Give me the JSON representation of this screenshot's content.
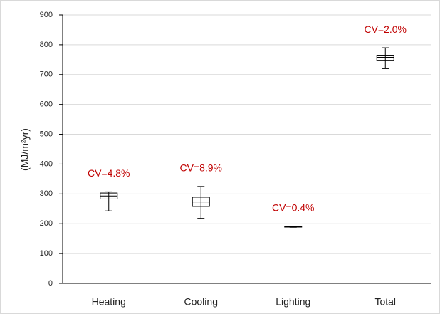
{
  "chart_data": {
    "type": "box",
    "y_label": "(MJ/m²yr)",
    "categories": [
      "Heating",
      "Cooling",
      "Lighting",
      "Total"
    ],
    "min": [
      243,
      218,
      188,
      720
    ],
    "q1": [
      283,
      258,
      189,
      748
    ],
    "median": [
      293,
      273,
      190,
      758
    ],
    "q3": [
      303,
      289,
      191,
      765
    ],
    "max": [
      307,
      325,
      192,
      790
    ],
    "annotations": [
      "CV=4.8%",
      "CV=8.9%",
      "CV=0.4%",
      "CV=2.0%"
    ],
    "annotation_color": "#c00000",
    "ylim": [
      0,
      900
    ],
    "yticks": [
      0,
      100,
      200,
      300,
      400,
      500,
      600,
      700,
      800,
      900
    ],
    "grid": true
  }
}
